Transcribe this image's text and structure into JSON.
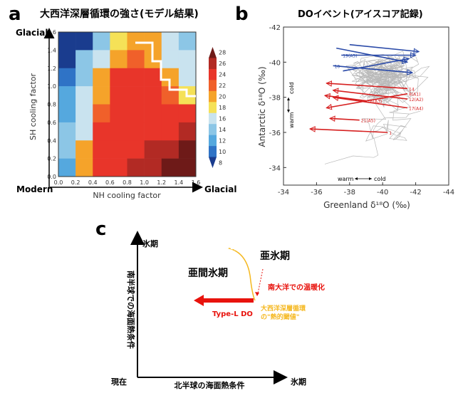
{
  "panels": {
    "a": {
      "letter": "a",
      "title": "大西洋深層循環の強さ(モデル結果)"
    },
    "b": {
      "letter": "b",
      "title": "DOイベント(アイスコア記録)"
    },
    "c": {
      "letter": "c"
    }
  },
  "chart_data": [
    {
      "type": "heatmap",
      "title": "大西洋深層循環の強さ(モデル結果)",
      "xlabel": "NH cooling factor",
      "ylabel": "SH cooling factor",
      "x_ticks": [
        "0.0",
        "0.2",
        "0.4",
        "0.6",
        "0.8",
        "1.0",
        "1.2",
        "1.4",
        "1.6"
      ],
      "y_ticks": [
        "0.0",
        "0.2",
        "0.4",
        "0.6",
        "0.8",
        "1.0",
        "1.2",
        "1.4",
        "1.6"
      ],
      "xlim": [
        0,
        1.6
      ],
      "ylim": [
        0,
        1.6
      ],
      "corner_labels": {
        "x_left": "Modern",
        "x_right": "Glacial",
        "y_top": "Glacial"
      },
      "colorbar": {
        "ticks": [
          "28",
          "26",
          "24",
          "22",
          "20",
          "18",
          "16",
          "14",
          "12",
          "10",
          "8"
        ],
        "range": [
          8,
          28
        ],
        "colors": [
          "#6e1a18",
          "#b22a24",
          "#e8352a",
          "#f0602a",
          "#f5a32a",
          "#f5e157",
          "#c9e3ef",
          "#8cc6e6",
          "#55a8de",
          "#2f73c6",
          "#1a3c8e"
        ]
      },
      "grid_values": [
        [
          8,
          8,
          15,
          18,
          20,
          20,
          16,
          14
        ],
        [
          8,
          14,
          17,
          20,
          22,
          20,
          16,
          16
        ],
        [
          11,
          14,
          20,
          24,
          24,
          24,
          20,
          16
        ],
        [
          12,
          16,
          20,
          24,
          24,
          24,
          22,
          19
        ],
        [
          12,
          16,
          22,
          24,
          24,
          24,
          24,
          24
        ],
        [
          14,
          16,
          24,
          24,
          24,
          24,
          24,
          26
        ],
        [
          14,
          20,
          24,
          24,
          24,
          26,
          26,
          28
        ],
        [
          12,
          20,
          24,
          24,
          26,
          26,
          28,
          28
        ]
      ],
      "grid_row_order": "top-to-bottom (SH 1.6→0.0)",
      "boundary_label": "white line: regime boundary"
    },
    {
      "type": "scatter",
      "title": "DOイベント(アイスコア記録)",
      "xlabel": "Greenland δ¹⁸O (‰)",
      "ylabel": "Antarctic δ¹⁸O (‰)",
      "x_ticks": [
        "-34",
        "-36",
        "-38",
        "-40",
        "-42",
        "-44"
      ],
      "y_ticks": [
        "-42",
        "-40",
        "-38",
        "-36",
        "-34"
      ],
      "xlim": [
        -34,
        -44
      ],
      "ylim": [
        -33,
        -42
      ],
      "x_dir_labels": {
        "left": "warm",
        "right": "cold"
      },
      "y_dir_labels": {
        "top": "cold",
        "bottom": "warm"
      },
      "series": [
        {
          "name": "",
          "color": "#d62020",
          "values": [
            {
              "from": [
                -40.3,
                -36.0
              ],
              "to": [
                -35.6,
                -36.2
              ],
              "label": "1"
            },
            {
              "from": [
                -41.5,
                -38.2
              ],
              "to": [
                -36.6,
                -37.4
              ],
              "label": "8(A1)"
            },
            {
              "from": [
                -41.5,
                -37.9
              ],
              "to": [
                -37.0,
                -38.4
              ],
              "label": "12(A2)"
            },
            {
              "from": [
                -41.5,
                -37.4
              ],
              "to": [
                -37.0,
                -38.0
              ],
              "label": "17(A4)"
            },
            {
              "from": [
                -41.5,
                -38.5
              ],
              "to": [
                -36.6,
                -38.8
              ],
              "label": "14"
            },
            {
              "from": [
                -39.0,
                -37.8
              ],
              "to": [
                -36.5,
                -38.1
              ],
              "label": "16(A3)"
            },
            {
              "from": [
                -38.6,
                -36.7
              ],
              "to": [
                -36.8,
                -36.8
              ],
              "label": "21(A5)"
            }
          ]
        },
        {
          "name": "",
          "color": "#2a4aa8",
          "values": [
            {
              "from": [
                -37.5,
                -40.4
              ],
              "to": [
                -42.0,
                -40.4
              ],
              "label": "19(A5)"
            },
            {
              "from": [
                -37.0,
                -39.8
              ],
              "to": [
                -41.8,
                -39.4
              ],
              "label": "10"
            },
            {
              "from": [
                -37.2,
                -40.8
              ],
              "to": [
                -41.5,
                -40.0
              ],
              "label": ""
            },
            {
              "from": [
                -37.6,
                -39.5
              ],
              "to": [
                -41.6,
                -40.2
              ],
              "label": ""
            },
            {
              "from": [
                -38.0,
                -41.0
              ],
              "to": [
                -42.2,
                -40.6
              ],
              "label": ""
            }
          ]
        }
      ]
    }
  ],
  "diagram_c": {
    "y_axis_label": "南半球での海面熱条件",
    "x_axis_label": "北半球の海面熱条件",
    "origin_label": "現在",
    "x_end_label": "氷期",
    "y_end_label": "氷期",
    "regime_left": "亜間氷期",
    "regime_right": "亜氷期",
    "red_arrow_label": "Type-L DO",
    "dotted_arrow_label": "南大洋での温暖化",
    "threshold_label_1": "大西洋深層循環",
    "threshold_label_2": "の\"熱的閾値\""
  }
}
